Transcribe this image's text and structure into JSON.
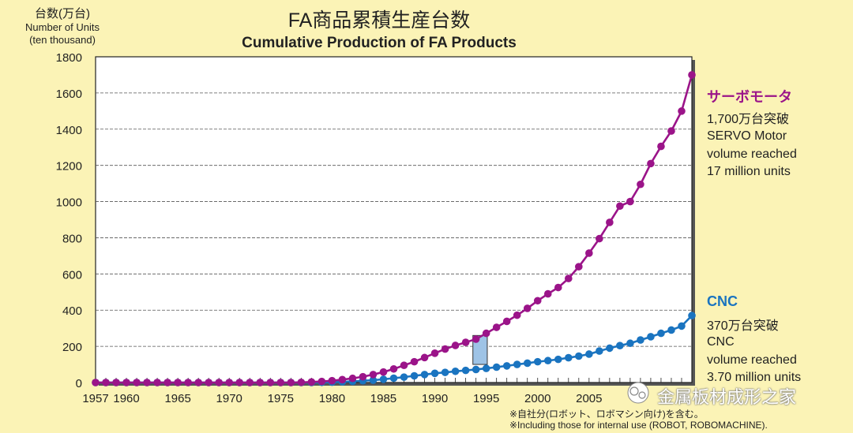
{
  "title_ja": "FA商品累積生産台数",
  "title_en": "Cumulative Production of FA Products",
  "y_unit_ja": "台数(万台)",
  "y_unit_en1": "Number of Units",
  "y_unit_en2": "(ten thousand)",
  "legend": {
    "servo": {
      "title": "サーボモータ",
      "lines": [
        "1,700万台突破",
        "SERVO Motor",
        "volume reached",
        "17 million units"
      ],
      "color": "#9b1489"
    },
    "cnc": {
      "title": "CNC",
      "lines": [
        "370万台突破",
        "CNC",
        "volume reached",
        "3.70 million units"
      ],
      "color": "#1a74c0"
    }
  },
  "notes": [
    "※自社分(ロボット、ロボマシン向け)を含む。",
    "※Including those for internal use (ROBOT, ROBOMACHINE)."
  ],
  "watermark": "金属板材成形之家",
  "chart_data": {
    "type": "line",
    "title": "Cumulative Production of FA Products",
    "ylabel": "Number of Units (ten thousand)",
    "xlim": [
      1957,
      2015
    ],
    "ylim": [
      0,
      1800
    ],
    "y_ticks": [
      0,
      200,
      400,
      600,
      800,
      1000,
      1200,
      1400,
      1600,
      1800
    ],
    "x_ticks": [
      1957,
      1960,
      1965,
      1970,
      1975,
      1980,
      1985,
      1990,
      1995,
      2000,
      2005
    ],
    "grid": "horizontal dashed",
    "x": [
      1957,
      1958,
      1959,
      1960,
      1961,
      1962,
      1963,
      1964,
      1965,
      1966,
      1967,
      1968,
      1969,
      1970,
      1971,
      1972,
      1973,
      1974,
      1975,
      1976,
      1977,
      1978,
      1979,
      1980,
      1981,
      1982,
      1983,
      1984,
      1985,
      1986,
      1987,
      1988,
      1989,
      1990,
      1991,
      1992,
      1993,
      1994,
      1995,
      1996,
      1997,
      1998,
      1999,
      2000,
      2001,
      2002,
      2003,
      2004,
      2005,
      2006,
      2007,
      2008,
      2009,
      2010,
      2011,
      2012,
      2013,
      2014,
      2015
    ],
    "series": [
      {
        "name": "サーボモータ",
        "color": "#9b1489",
        "values": [
          0,
          0,
          0,
          0,
          0,
          0,
          0,
          0,
          0,
          0,
          0,
          0,
          0,
          0,
          0,
          0,
          0,
          0,
          0,
          0,
          1,
          3,
          6,
          10,
          16,
          23,
          32,
          44,
          58,
          75,
          95,
          115,
          138,
          162,
          185,
          205,
          222,
          240,
          272,
          305,
          338,
          372,
          410,
          452,
          490,
          525,
          575,
          640,
          715,
          795,
          885,
          975,
          1000,
          1095,
          1210,
          1305,
          1390,
          1500,
          1700
        ]
      },
      {
        "name": "CNC",
        "color": "#1a74c0",
        "values": [
          0,
          0,
          0,
          0,
          0,
          0,
          0,
          0,
          0,
          0,
          0,
          0,
          0,
          0,
          0,
          0,
          0,
          0,
          0,
          0,
          0,
          0,
          1,
          2,
          4,
          6,
          10,
          13,
          18,
          24,
          30,
          37,
          44,
          51,
          56,
          62,
          67,
          72,
          78,
          85,
          92,
          100,
          107,
          115,
          121,
          128,
          137,
          146,
          157,
          174,
          190,
          204,
          217,
          235,
          253,
          272,
          290,
          312,
          370
        ]
      }
    ],
    "annotation": "highlight box at 1994, 100–260"
  }
}
